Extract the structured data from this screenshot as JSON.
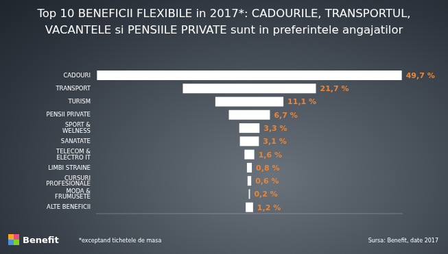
{
  "chart_data": {
    "type": "bar",
    "orientation": "horizontal",
    "title": "Top 10 BENEFICII FLEXIBILE in 2017*: CADOURILE, TRANSPORTUL, VACANTELE si PENSIILE PRIVATE sunt in preferintele angajatilor",
    "categories": [
      "CADOURI",
      "TRANSPORT",
      "TURISM",
      "PENSII PRIVATE",
      "SPORT & WELNESS",
      "SANATATE",
      "TELECOM & ELECTRO IT",
      "LIMBI STRAINE",
      "CURSURI PROFESIONALE",
      "MODA & FRUMUSETE",
      "ALTE BENEFICII"
    ],
    "values": [
      49.7,
      21.7,
      11.1,
      6.7,
      3.3,
      3.1,
      1.6,
      0.8,
      0.6,
      0.2,
      1.2
    ],
    "value_labels": [
      "49,7 %",
      "21,7 %",
      "11,1 %",
      "6,7 %",
      "3,3 %",
      "3,1 %",
      "1,6 %",
      "0,8 %",
      "0,6 %",
      "0,2 %",
      "1,2 %"
    ],
    "data_labels": true,
    "color": "#ffffff",
    "xlim": [
      0,
      50
    ],
    "tick_labels": "y",
    "grid": false,
    "annotations": [
      "Benefit",
      "*exceptand tichetele de masa",
      "Sursa: Benefit, date 2017"
    ]
  }
}
